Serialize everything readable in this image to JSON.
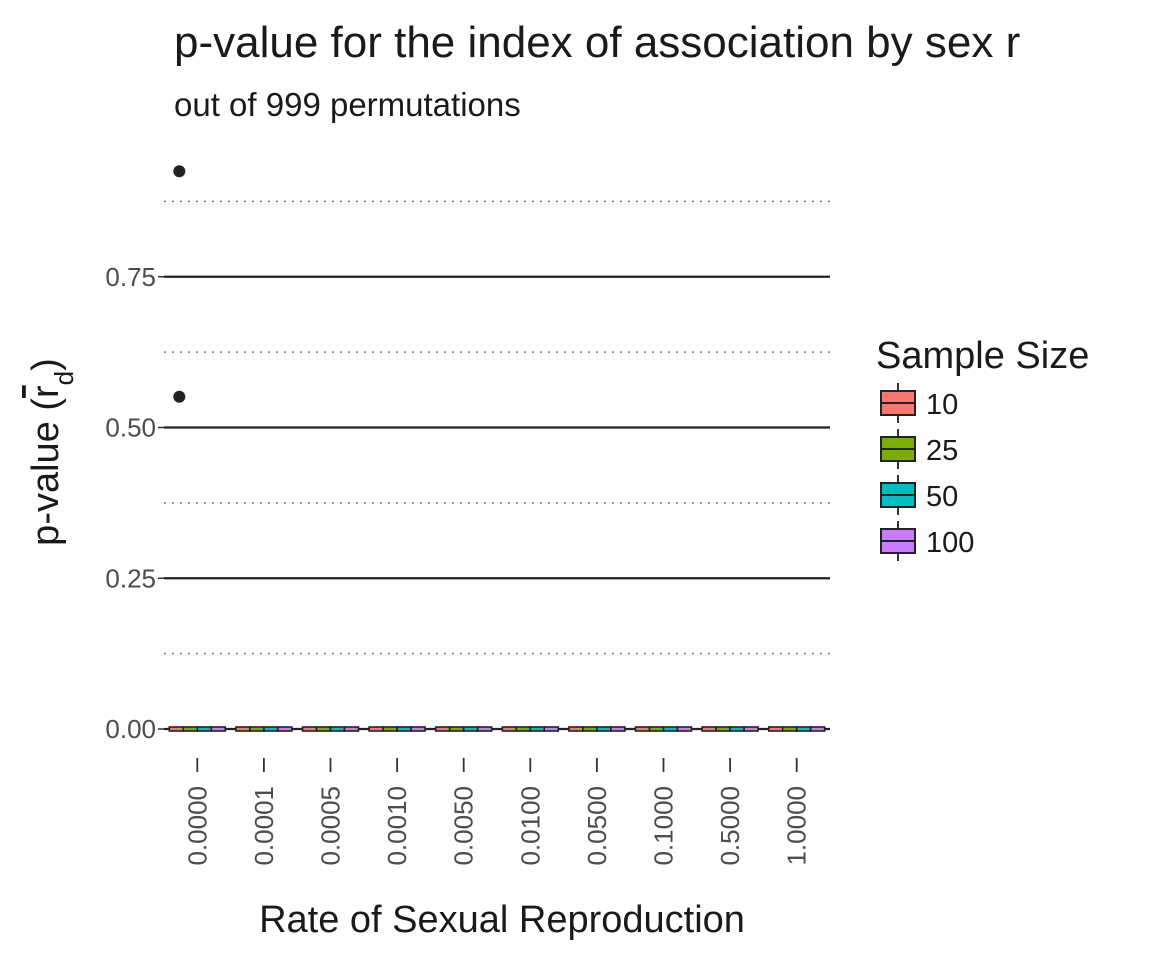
{
  "chart_data": {
    "type": "box",
    "title": "p-value for the index of association by sex r",
    "subtitle": "out of 999 permutations",
    "xlabel": "Rate of Sexual Reproduction",
    "ylabel": "p-value (r̅d)",
    "ylim": [
      -0.04,
      0.96
    ],
    "yticks": [
      0.0,
      0.25,
      0.5,
      0.75
    ],
    "ytick_labels": [
      "0.00",
      "0.25",
      "0.50",
      "0.75"
    ],
    "grid": {
      "major": "solid",
      "minor": "dotted"
    },
    "categories": [
      "0.0000",
      "0.0001",
      "0.0005",
      "0.0010",
      "0.0050",
      "0.0100",
      "0.0500",
      "0.1000",
      "0.5000",
      "1.0000"
    ],
    "series": [
      {
        "name": "10",
        "color": "#F8766D",
        "median": [
          0,
          0,
          0,
          0,
          0,
          0,
          0,
          0,
          0,
          0
        ]
      },
      {
        "name": "25",
        "color": "#7CAE00",
        "median": [
          0,
          0,
          0,
          0,
          0,
          0,
          0,
          0,
          0,
          0
        ]
      },
      {
        "name": "50",
        "color": "#00BFC4",
        "median": [
          0,
          0,
          0,
          0,
          0,
          0,
          0,
          0,
          0,
          0
        ]
      },
      {
        "name": "100",
        "color": "#C77CFF",
        "median": [
          0,
          0,
          0,
          0,
          0,
          0,
          0,
          0,
          0,
          0
        ]
      }
    ],
    "outliers": [
      {
        "category": "0.0000",
        "value": 0.925
      },
      {
        "category": "0.0000",
        "value": 0.551
      }
    ],
    "legend": {
      "title": "Sample Size",
      "position": "right"
    }
  }
}
